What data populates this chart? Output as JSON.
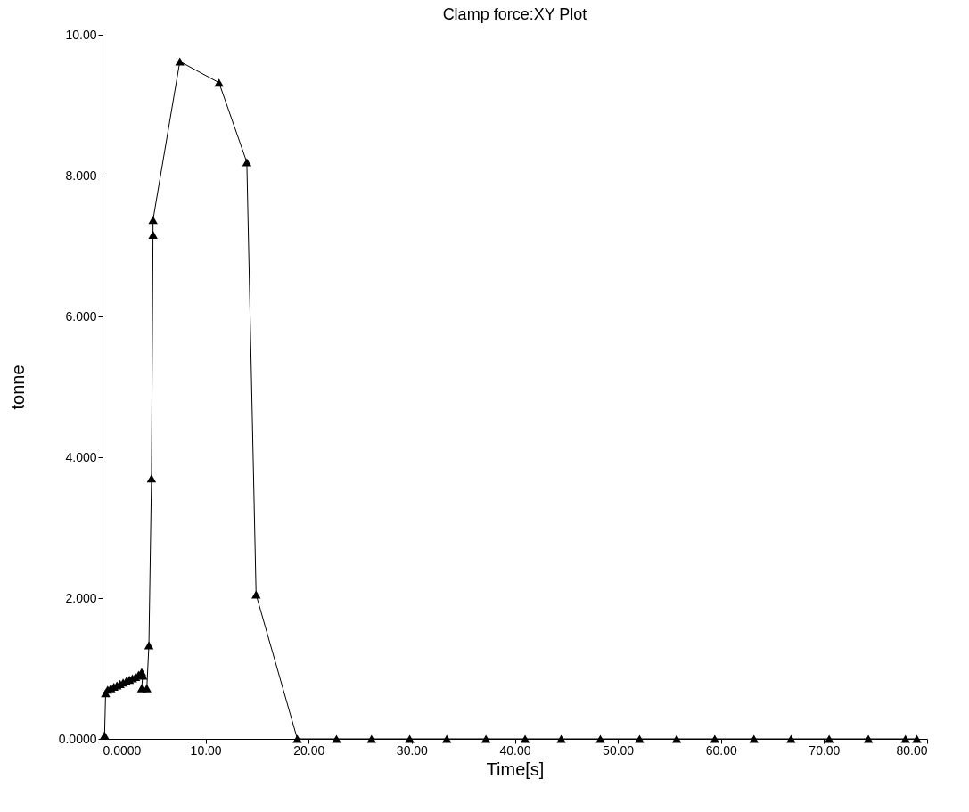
{
  "chart_data": {
    "type": "line",
    "title": "Clamp force:XY Plot",
    "xlabel": "Time[s]",
    "ylabel": "tonne",
    "marker": "triangle",
    "grid": false,
    "xlim": [
      0,
      80
    ],
    "xticks": [
      {
        "value": 0,
        "label": "0.0000"
      },
      {
        "value": 10,
        "label": "10.00"
      },
      {
        "value": 20,
        "label": "20.00"
      },
      {
        "value": 30,
        "label": "30.00"
      },
      {
        "value": 40,
        "label": "40.00"
      },
      {
        "value": 50,
        "label": "50.00"
      },
      {
        "value": 60,
        "label": "60.00"
      },
      {
        "value": 70,
        "label": "70.00"
      },
      {
        "value": 80,
        "label": "80.00"
      }
    ],
    "ylim": [
      0,
      10
    ],
    "yticks": [
      {
        "value": 0,
        "label": "0.0000"
      },
      {
        "value": 2,
        "label": "2.000"
      },
      {
        "value": 4,
        "label": "4.000"
      },
      {
        "value": 6,
        "label": "6.000"
      },
      {
        "value": 8,
        "label": "8.000"
      },
      {
        "value": 10,
        "label": "10.00"
      }
    ],
    "series": [
      {
        "color": "#000000",
        "x": [
          0.2,
          0.3,
          0.5,
          0.8,
          1.1,
          1.4,
          1.7,
          2.0,
          2.3,
          2.6,
          2.9,
          3.2,
          3.5,
          3.8,
          3.9,
          3.8,
          4.3,
          4.5,
          4.75,
          4.9,
          4.9,
          7.5,
          11.3,
          14.0,
          14.9,
          18.9,
          22.7,
          26.1,
          29.8,
          33.4,
          37.2,
          41.0,
          44.5,
          48.3,
          52.1,
          55.7,
          59.4,
          63.2,
          66.8,
          70.5,
          74.3,
          77.9,
          79.0
        ],
        "values": [
          0.05,
          0.65,
          0.7,
          0.72,
          0.74,
          0.76,
          0.78,
          0.8,
          0.82,
          0.84,
          0.86,
          0.88,
          0.91,
          0.95,
          0.9,
          0.72,
          0.72,
          1.33,
          3.7,
          7.16,
          7.37,
          9.62,
          9.32,
          8.19,
          2.05,
          0,
          0,
          0,
          0,
          0,
          0,
          0,
          0,
          0,
          0,
          0,
          0,
          0,
          0,
          0,
          0,
          0,
          0
        ]
      }
    ]
  }
}
